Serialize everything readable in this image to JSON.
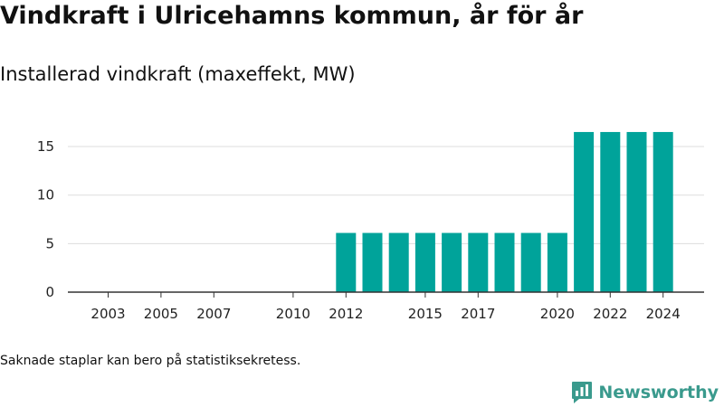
{
  "chart_data": {
    "type": "bar",
    "title": "Vindkraft i Ulricehamns kommun, år för år",
    "subtitle": "Installerad vindkraft (maxeffekt, MW)",
    "x": [
      2003,
      2004,
      2005,
      2006,
      2007,
      2008,
      2009,
      2010,
      2011,
      2012,
      2013,
      2014,
      2015,
      2016,
      2017,
      2018,
      2019,
      2020,
      2021,
      2022,
      2023,
      2024
    ],
    "values": [
      0,
      0,
      0,
      0,
      0,
      0,
      0,
      0,
      0,
      6.1,
      6.1,
      6.1,
      6.1,
      6.1,
      6.1,
      6.1,
      6.1,
      6.1,
      16.5,
      16.5,
      16.5,
      16.5
    ],
    "x_tick_labels": [
      2003,
      2005,
      2007,
      2010,
      2012,
      2015,
      2017,
      2020,
      2022,
      2024
    ],
    "y_ticks": [
      0,
      5,
      10,
      15
    ],
    "ylim": [
      0,
      18
    ],
    "grid": true,
    "bar_color": "#00a39a"
  },
  "footnote": "Saknade staplar kan bero på statistiksekretess.",
  "brand": {
    "name": "Newsworthy",
    "icon": "newsworthy-logo-icon",
    "color": "#3a9a8d"
  }
}
